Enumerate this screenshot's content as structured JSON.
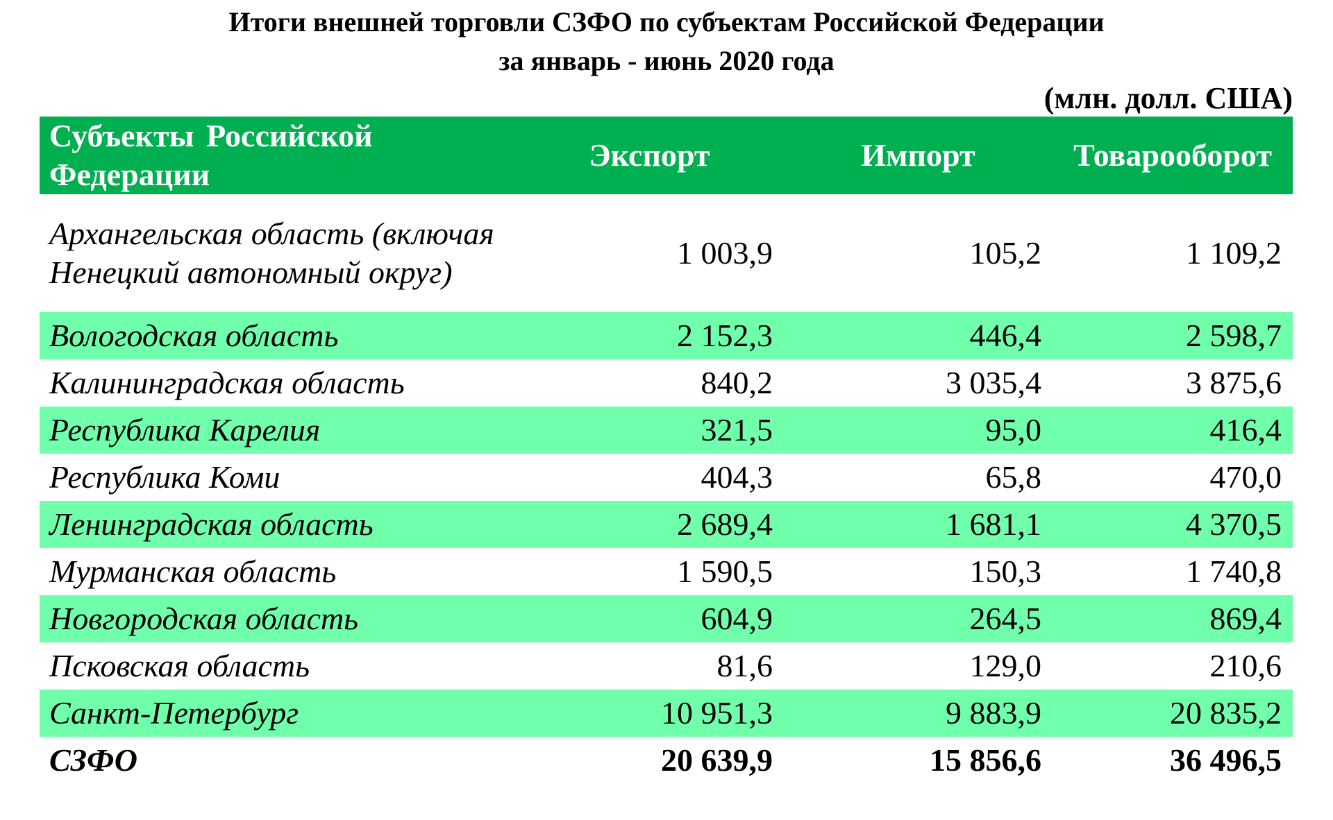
{
  "title": {
    "line1": "Итоги внешней торговли СЗФО по субъектам Российской Федерации",
    "line2": "за январь - июнь 2020 года"
  },
  "unit": "(млн. долл. США)",
  "colors": {
    "header_bg": "#00b050",
    "header_text": "#ffffff",
    "stripe_bg": "#70ffaa"
  },
  "table": {
    "headers": {
      "region": "Субъекты Российской Федерации",
      "export": "Экспорт",
      "import": "Импорт",
      "turnover": "Товарооборот"
    },
    "rows": [
      {
        "region": "Архангельская область (включая Ненецкий автономный округ)",
        "export": "1 003,9",
        "import": "105,2",
        "turnover": "1 109,2"
      },
      {
        "region": "Вологодская область",
        "export": "2 152,3",
        "import": "446,4",
        "turnover": "2 598,7"
      },
      {
        "region": "Калининградская область",
        "export": "840,2",
        "import": "3 035,4",
        "turnover": "3 875,6"
      },
      {
        "region": "Республика Карелия",
        "export": "321,5",
        "import": "95,0",
        "turnover": "416,4"
      },
      {
        "region": "Республика Коми",
        "export": "404,3",
        "import": "65,8",
        "turnover": "470,0"
      },
      {
        "region": "Ленинградская область",
        "export": "2 689,4",
        "import": "1 681,1",
        "turnover": "4 370,5"
      },
      {
        "region": "Мурманская область",
        "export": "1 590,5",
        "import": "150,3",
        "turnover": "1 740,8"
      },
      {
        "region": "Новгородская область",
        "export": "604,9",
        "import": "264,5",
        "turnover": "869,4"
      },
      {
        "region": "Псковская область",
        "export": "81,6",
        "import": "129,0",
        "turnover": "210,6"
      },
      {
        "region": "Санкт-Петербург",
        "export": "10 951,3",
        "import": "9 883,9",
        "turnover": "20 835,2"
      }
    ],
    "total": {
      "region": "СЗФО",
      "export": "20 639,9",
      "import": "15 856,6",
      "turnover": "36 496,5"
    }
  }
}
